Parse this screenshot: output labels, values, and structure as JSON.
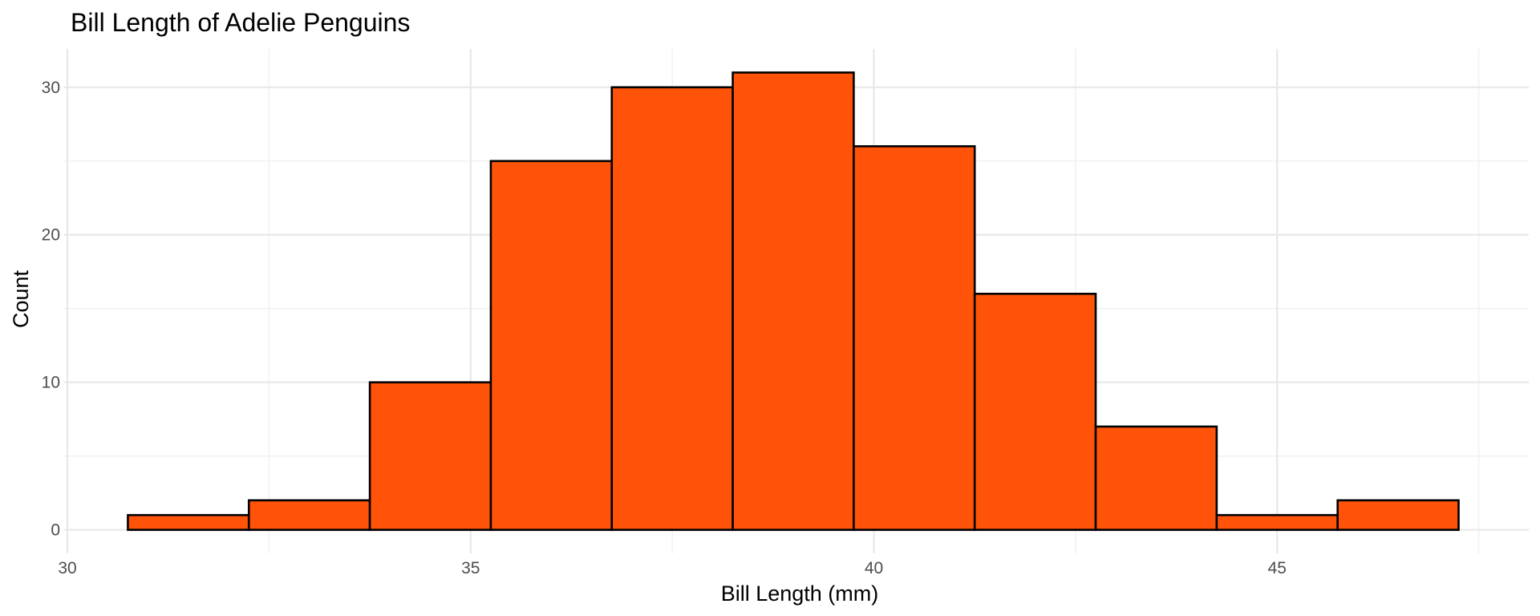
{
  "chart_data": {
    "type": "bar",
    "title": "Bill Length of Adelie Penguins",
    "xlabel": "Bill Length (mm)",
    "ylabel": "Count",
    "bar_color": "#FF530A",
    "bar_outline": "#000000",
    "xlim": [
      29.96,
      48.12
    ],
    "ylim": [
      -1.6,
      32.6
    ],
    "x_ticks": [
      30,
      35,
      40,
      45
    ],
    "y_ticks": [
      0,
      10,
      20,
      30
    ],
    "grid": true,
    "bins": [
      {
        "start": 30.75,
        "end": 32.25,
        "count": 1
      },
      {
        "start": 32.25,
        "end": 33.75,
        "count": 2
      },
      {
        "start": 33.75,
        "end": 35.25,
        "count": 10
      },
      {
        "start": 35.25,
        "end": 36.75,
        "count": 25
      },
      {
        "start": 36.75,
        "end": 38.25,
        "count": 30
      },
      {
        "start": 38.25,
        "end": 39.75,
        "count": 31
      },
      {
        "start": 39.75,
        "end": 41.25,
        "count": 26
      },
      {
        "start": 41.25,
        "end": 42.75,
        "count": 16
      },
      {
        "start": 42.75,
        "end": 44.25,
        "count": 7
      },
      {
        "start": 44.25,
        "end": 45.75,
        "count": 1
      },
      {
        "start": 45.75,
        "end": 47.25,
        "count": 2
      }
    ]
  }
}
